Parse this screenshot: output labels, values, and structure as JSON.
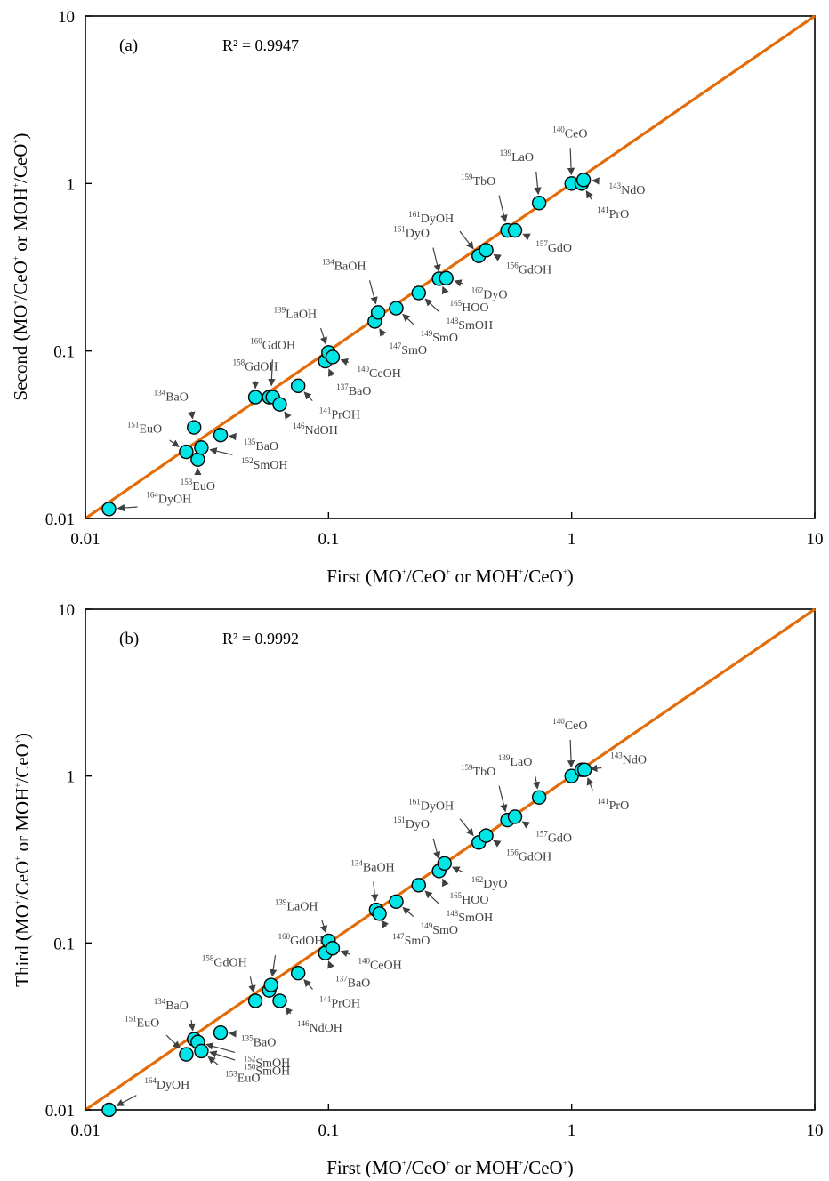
{
  "chart_data": [
    {
      "type": "scatter",
      "panel_label": "(a)",
      "r2_text": "R² = 0.9947",
      "xlabel": {
        "pre": "First (MO",
        "s1": "+",
        "mid1": "/CeO",
        "s2": "+",
        "mid2": " or MOH",
        "s3": "+",
        "mid3": "/CeO",
        "s4": "+",
        "post": ")"
      },
      "ylabel": {
        "pre": "Second (MO",
        "s1": "+",
        "mid1": "/CeO",
        "s2": "+",
        "mid2": " or MOH",
        "s3": "+",
        "mid3": "/CeO",
        "s4": "+",
        "post": ")"
      },
      "xscale": "log",
      "yscale": "log",
      "xlim": [
        0.01,
        10
      ],
      "ylim": [
        0.01,
        10
      ],
      "xticks": [
        "0.01",
        "0.1",
        "1",
        "10"
      ],
      "yticks": [
        "0.01",
        "0.1",
        "1",
        "10"
      ],
      "grid": false,
      "line": {
        "type": "y=x",
        "color": "#e36c0a"
      },
      "marker_color": "#00e5e5",
      "points": [
        {
          "x": 0.0125,
          "y": 0.0114
        },
        {
          "x": 0.026,
          "y": 0.025
        },
        {
          "x": 0.028,
          "y": 0.035
        },
        {
          "x": 0.029,
          "y": 0.0225
        },
        {
          "x": 0.03,
          "y": 0.0265
        },
        {
          "x": 0.036,
          "y": 0.0315
        },
        {
          "x": 0.05,
          "y": 0.053
        },
        {
          "x": 0.057,
          "y": 0.053
        },
        {
          "x": 0.059,
          "y": 0.053
        },
        {
          "x": 0.063,
          "y": 0.048
        },
        {
          "x": 0.075,
          "y": 0.062
        },
        {
          "x": 0.097,
          "y": 0.087
        },
        {
          "x": 0.1,
          "y": 0.098
        },
        {
          "x": 0.104,
          "y": 0.092
        },
        {
          "x": 0.155,
          "y": 0.15
        },
        {
          "x": 0.16,
          "y": 0.17
        },
        {
          "x": 0.19,
          "y": 0.18
        },
        {
          "x": 0.235,
          "y": 0.222
        },
        {
          "x": 0.285,
          "y": 0.27
        },
        {
          "x": 0.305,
          "y": 0.272
        },
        {
          "x": 0.415,
          "y": 0.37
        },
        {
          "x": 0.445,
          "y": 0.4
        },
        {
          "x": 0.545,
          "y": 0.525
        },
        {
          "x": 0.585,
          "y": 0.525
        },
        {
          "x": 0.735,
          "y": 0.765
        },
        {
          "x": 1.0,
          "y": 1.0
        },
        {
          "x": 1.1,
          "y": 1.0
        },
        {
          "x": 1.12,
          "y": 1.05
        }
      ],
      "annotations": [
        {
          "iso": "164",
          "el": "DyOH",
          "x": 0.0125,
          "y": 0.0114,
          "tx": 0.0175,
          "ty": 0.0118
        },
        {
          "iso": "151",
          "el": "EuO",
          "x": 0.026,
          "y": 0.025,
          "tx": 0.021,
          "ty": 0.031
        },
        {
          "iso": "134",
          "el": "BaO",
          "x": 0.028,
          "y": 0.035,
          "tx": 0.027,
          "ty": 0.048
        },
        {
          "iso": "153",
          "el": "EuO",
          "x": 0.029,
          "y": 0.0225,
          "tx": 0.029,
          "ty": 0.0175
        },
        {
          "iso": "152",
          "el": "SmOH",
          "x": 0.03,
          "y": 0.0265,
          "tx": 0.043,
          "ty": 0.0235
        },
        {
          "iso": "135",
          "el": "BaO",
          "x": 0.036,
          "y": 0.0315,
          "tx": 0.044,
          "ty": 0.0305
        },
        {
          "iso": "158",
          "el": "GdOH",
          "x": 0.05,
          "y": 0.053,
          "tx": 0.05,
          "ty": 0.073
        },
        {
          "iso": "160",
          "el": "GdOH",
          "x": 0.058,
          "y": 0.055,
          "tx": 0.059,
          "ty": 0.098
        },
        {
          "iso": "146",
          "el": "NdOH",
          "x": 0.063,
          "y": 0.048,
          "tx": 0.07,
          "ty": 0.038
        },
        {
          "iso": "141",
          "el": "PrOH",
          "x": 0.075,
          "y": 0.062,
          "tx": 0.09,
          "ty": 0.047
        },
        {
          "iso": "137",
          "el": "BaO",
          "x": 0.097,
          "y": 0.087,
          "tx": 0.106,
          "ty": 0.065
        },
        {
          "iso": "140",
          "el": "CeOH",
          "x": 0.104,
          "y": 0.092,
          "tx": 0.129,
          "ty": 0.083
        },
        {
          "iso": "139",
          "el": "LaOH",
          "x": 0.1,
          "y": 0.098,
          "tx": 0.091,
          "ty": 0.15
        },
        {
          "iso": "147",
          "el": "SmO",
          "x": 0.155,
          "y": 0.15,
          "tx": 0.175,
          "ty": 0.114
        },
        {
          "iso": "134",
          "el": "BaOH",
          "x": 0.16,
          "y": 0.17,
          "tx": 0.145,
          "ty": 0.29
        },
        {
          "iso": "149",
          "el": "SmO",
          "x": 0.19,
          "y": 0.18,
          "tx": 0.235,
          "ty": 0.135
        },
        {
          "iso": "148",
          "el": "SmOH",
          "x": 0.235,
          "y": 0.222,
          "tx": 0.3,
          "ty": 0.16
        },
        {
          "iso": "165",
          "el": "HOO",
          "x": 0.285,
          "y": 0.27,
          "tx": 0.31,
          "ty": 0.205
        },
        {
          "iso": "161",
          "el": "DyO",
          "x": 0.29,
          "y": 0.265,
          "tx": 0.265,
          "ty": 0.455
        },
        {
          "iso": "162",
          "el": "DyO",
          "x": 0.305,
          "y": 0.272,
          "tx": 0.38,
          "ty": 0.245
        },
        {
          "iso": "161",
          "el": "DyOH",
          "x": 0.415,
          "y": 0.37,
          "tx": 0.333,
          "ty": 0.56
        },
        {
          "iso": "156",
          "el": "GdOH",
          "x": 0.445,
          "y": 0.4,
          "tx": 0.53,
          "ty": 0.345
        },
        {
          "iso": "159",
          "el": "TbO",
          "x": 0.545,
          "y": 0.525,
          "tx": 0.495,
          "ty": 0.935
        },
        {
          "iso": "157",
          "el": "GdO",
          "x": 0.585,
          "y": 0.525,
          "tx": 0.7,
          "ty": 0.465
        },
        {
          "iso": "139",
          "el": "LaO",
          "x": 0.735,
          "y": 0.765,
          "tx": 0.71,
          "ty": 1.3
        },
        {
          "iso": "140",
          "el": "CeO",
          "x": 1.0,
          "y": 1.0,
          "tx": 0.985,
          "ty": 1.8
        },
        {
          "iso": "141",
          "el": "PrO",
          "x": 1.1,
          "y": 1.0,
          "tx": 1.25,
          "ty": 0.74
        },
        {
          "iso": "143",
          "el": "NdO",
          "x": 1.12,
          "y": 1.05,
          "tx": 1.4,
          "ty": 1.03
        }
      ]
    },
    {
      "type": "scatter",
      "panel_label": "(b)",
      "r2_text": "R² = 0.9992",
      "xlabel": {
        "pre": "First (MO",
        "s1": "+",
        "mid1": "/CeO",
        "s2": "+",
        "mid2": " or MOH",
        "s3": "+",
        "mid3": "/CeO",
        "s4": "+",
        "post": ")"
      },
      "ylabel": {
        "pre": "Third (MO",
        "s1": "+",
        "mid1": "/CeO",
        "s2": "+",
        "mid2": " or MOH",
        "s3": "+",
        "mid3": "/CeO",
        "s4": "+",
        "post": ")"
      },
      "xscale": "log",
      "yscale": "log",
      "xlim": [
        0.01,
        10
      ],
      "ylim": [
        0.01,
        10
      ],
      "xticks": [
        "0.01",
        "0.1",
        "1",
        "10"
      ],
      "yticks": [
        "0.01",
        "0.1",
        "1",
        "10"
      ],
      "grid": false,
      "line": {
        "type": "y=x",
        "color": "#e36c0a"
      },
      "marker_color": "#00e5e5",
      "points": [
        {
          "x": 0.0125,
          "y": 0.01
        },
        {
          "x": 0.026,
          "y": 0.0215
        },
        {
          "x": 0.028,
          "y": 0.0265
        },
        {
          "x": 0.029,
          "y": 0.0255
        },
        {
          "x": 0.03,
          "y": 0.0225
        },
        {
          "x": 0.036,
          "y": 0.029
        },
        {
          "x": 0.05,
          "y": 0.045
        },
        {
          "x": 0.057,
          "y": 0.052
        },
        {
          "x": 0.058,
          "y": 0.056
        },
        {
          "x": 0.063,
          "y": 0.045
        },
        {
          "x": 0.075,
          "y": 0.066
        },
        {
          "x": 0.097,
          "y": 0.087
        },
        {
          "x": 0.1,
          "y": 0.103
        },
        {
          "x": 0.104,
          "y": 0.093
        },
        {
          "x": 0.157,
          "y": 0.158
        },
        {
          "x": 0.162,
          "y": 0.15
        },
        {
          "x": 0.19,
          "y": 0.177
        },
        {
          "x": 0.235,
          "y": 0.222
        },
        {
          "x": 0.285,
          "y": 0.27
        },
        {
          "x": 0.3,
          "y": 0.3
        },
        {
          "x": 0.415,
          "y": 0.4
        },
        {
          "x": 0.445,
          "y": 0.44
        },
        {
          "x": 0.545,
          "y": 0.545
        },
        {
          "x": 0.585,
          "y": 0.57
        },
        {
          "x": 0.735,
          "y": 0.745
        },
        {
          "x": 1.0,
          "y": 1.0
        },
        {
          "x": 1.1,
          "y": 1.09
        },
        {
          "x": 1.13,
          "y": 1.09
        }
      ],
      "annotations": [
        {
          "iso": "164",
          "el": "DyOH",
          "x": 0.0125,
          "y": 0.01,
          "tx": 0.0172,
          "ty": 0.0128
        },
        {
          "iso": "151",
          "el": "EuO",
          "x": 0.026,
          "y": 0.0215,
          "tx": 0.0205,
          "ty": 0.03
        },
        {
          "iso": "134",
          "el": "BaO",
          "x": 0.028,
          "y": 0.0265,
          "tx": 0.027,
          "ty": 0.038
        },
        {
          "iso": "153",
          "el": "EuO",
          "x": 0.03,
          "y": 0.0225,
          "tx": 0.037,
          "ty": 0.0175
        },
        {
          "iso": "150",
          "el": "SmOH",
          "x": 0.03,
          "y": 0.023,
          "tx": 0.044,
          "ty": 0.0193
        },
        {
          "iso": "152",
          "el": "SmOH",
          "x": 0.029,
          "y": 0.0255,
          "tx": 0.044,
          "ty": 0.0215
        },
        {
          "iso": "135",
          "el": "BaO",
          "x": 0.036,
          "y": 0.029,
          "tx": 0.043,
          "ty": 0.0285
        },
        {
          "iso": "158",
          "el": "GdOH",
          "x": 0.05,
          "y": 0.045,
          "tx": 0.047,
          "ty": 0.069
        },
        {
          "iso": "160",
          "el": "GdOH",
          "x": 0.058,
          "y": 0.056,
          "tx": 0.061,
          "ty": 0.093
        },
        {
          "iso": "146",
          "el": "NdOH",
          "x": 0.063,
          "y": 0.045,
          "tx": 0.073,
          "ty": 0.035
        },
        {
          "iso": "141",
          "el": "PrOH",
          "x": 0.075,
          "y": 0.066,
          "tx": 0.09,
          "ty": 0.049
        },
        {
          "iso": "137",
          "el": "BaO",
          "x": 0.097,
          "y": 0.087,
          "tx": 0.105,
          "ty": 0.065
        },
        {
          "iso": "140",
          "el": "CeOH",
          "x": 0.104,
          "y": 0.093,
          "tx": 0.13,
          "ty": 0.083
        },
        {
          "iso": "139",
          "el": "LaOH",
          "x": 0.1,
          "y": 0.103,
          "tx": 0.092,
          "ty": 0.15
        },
        {
          "iso": "147",
          "el": "SmO",
          "x": 0.157,
          "y": 0.15,
          "tx": 0.18,
          "ty": 0.116
        },
        {
          "iso": "134",
          "el": "BaOH",
          "x": 0.157,
          "y": 0.158,
          "tx": 0.152,
          "ty": 0.257
        },
        {
          "iso": "149",
          "el": "SmO",
          "x": 0.19,
          "y": 0.177,
          "tx": 0.235,
          "ty": 0.135
        },
        {
          "iso": "148",
          "el": "SmOH",
          "x": 0.235,
          "y": 0.222,
          "tx": 0.3,
          "ty": 0.16
        },
        {
          "iso": "165",
          "el": "HOO",
          "x": 0.285,
          "y": 0.27,
          "tx": 0.31,
          "ty": 0.205
        },
        {
          "iso": "161",
          "el": "DyO",
          "x": 0.29,
          "y": 0.285,
          "tx": 0.265,
          "ty": 0.465
        },
        {
          "iso": "162",
          "el": "DyO",
          "x": 0.3,
          "y": 0.3,
          "tx": 0.38,
          "ty": 0.255
        },
        {
          "iso": "161",
          "el": "DyOH",
          "x": 0.415,
          "y": 0.4,
          "tx": 0.333,
          "ty": 0.6
        },
        {
          "iso": "156",
          "el": "GdOH",
          "x": 0.445,
          "y": 0.44,
          "tx": 0.53,
          "ty": 0.372
        },
        {
          "iso": "159",
          "el": "TbO",
          "x": 0.545,
          "y": 0.545,
          "tx": 0.495,
          "ty": 0.96
        },
        {
          "iso": "157",
          "el": "GdO",
          "x": 0.585,
          "y": 0.57,
          "tx": 0.7,
          "ty": 0.48
        },
        {
          "iso": "139",
          "el": "LaO",
          "x": 0.735,
          "y": 0.745,
          "tx": 0.7,
          "ty": 1.1
        },
        {
          "iso": "140",
          "el": "CeO",
          "x": 1.0,
          "y": 1.0,
          "tx": 0.985,
          "ty": 1.82
        },
        {
          "iso": "141",
          "el": "PrO",
          "x": 1.13,
          "y": 1.09,
          "tx": 1.25,
          "ty": 0.75
        },
        {
          "iso": "143",
          "el": "NdO",
          "x": 1.1,
          "y": 1.09,
          "tx": 1.42,
          "ty": 1.13
        }
      ]
    }
  ]
}
